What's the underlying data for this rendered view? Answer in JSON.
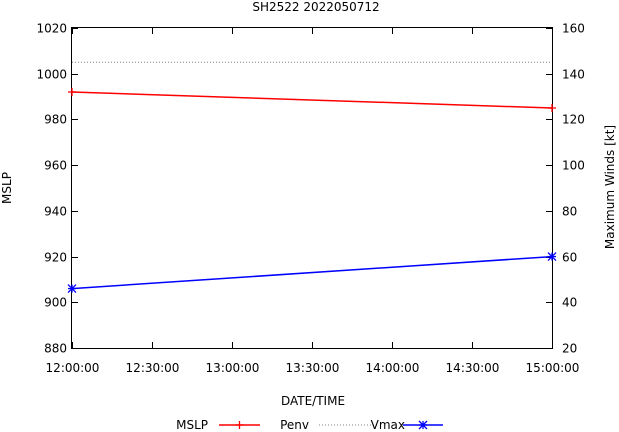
{
  "chart_data": {
    "type": "line",
    "title": "SH2522 2022050712",
    "xlabel": "DATE/TIME",
    "ylabel_left": "MSLP",
    "ylabel_right": "Maximum Winds [kt]",
    "x_ticks": [
      "12:00:00",
      "12:30:00",
      "13:00:00",
      "13:30:00",
      "14:00:00",
      "14:30:00",
      "15:00:00"
    ],
    "y_left_range": [
      880,
      1020
    ],
    "y_left_ticks": [
      "880",
      "900",
      "920",
      "940",
      "960",
      "980",
      "1000",
      "1020"
    ],
    "y_right_range": [
      20,
      160
    ],
    "y_right_ticks": [
      "20",
      "40",
      "60",
      "80",
      "100",
      "120",
      "140",
      "160"
    ],
    "grid": false,
    "legend_placement": "bottom",
    "series": [
      {
        "name": "MSLP",
        "axis": "left",
        "color": "#ff0000",
        "marker": "plus",
        "style": "solid",
        "x": [
          "12:00:00",
          "15:00:00"
        ],
        "y": [
          992,
          985
        ]
      },
      {
        "name": "Penv",
        "axis": "left",
        "color": "#808080",
        "marker": "none",
        "style": "dotted",
        "x": [
          "12:00:00",
          "15:00:00"
        ],
        "y": [
          1005,
          1005
        ]
      },
      {
        "name": "Vmax",
        "axis": "right",
        "color": "#0000ff",
        "marker": "star",
        "style": "solid",
        "x": [
          "12:00:00",
          "15:00:00"
        ],
        "y": [
          46,
          60
        ]
      }
    ]
  }
}
